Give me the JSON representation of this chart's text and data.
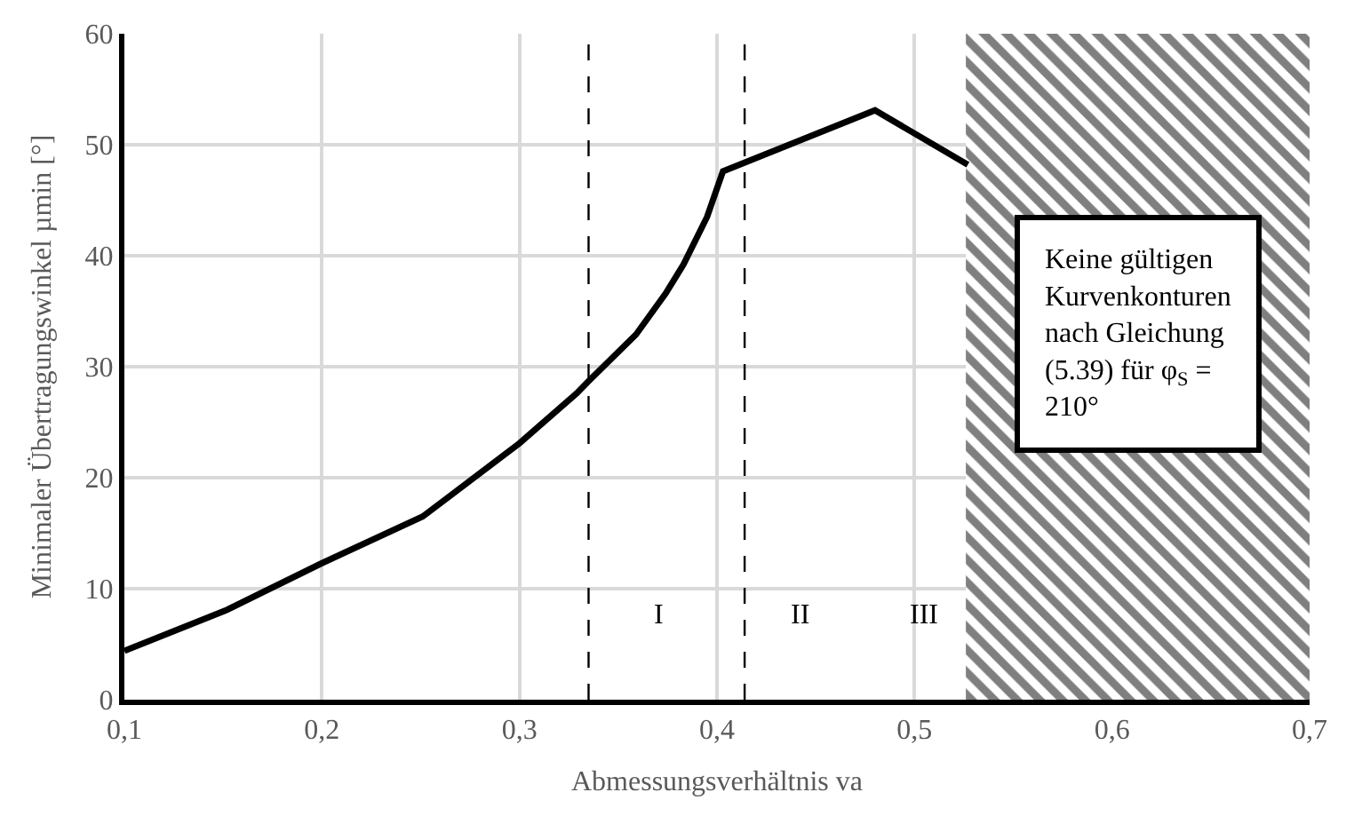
{
  "chart_data": {
    "type": "line",
    "xlabel": "Abmessungsverhältnis va",
    "ylabel": "Minimaler Übertragungswinkel µmin [°]",
    "series": [
      {
        "color": "#000000",
        "x": [
          0.1,
          0.152,
          0.2,
          0.251,
          0.3,
          0.329,
          0.335,
          0.359,
          0.374,
          0.383,
          0.395,
          0.403,
          0.48,
          0.527
        ],
        "values": [
          4.4,
          8.1,
          12.3,
          16.5,
          23.1,
          27.6,
          28.7,
          32.9,
          36.6,
          39.2,
          43.5,
          47.6,
          53.1,
          48.2
        ]
      }
    ],
    "xlim": [
      0.1,
      0.7
    ],
    "xticks": [
      {
        "value": 0.1,
        "label": "0,1"
      },
      {
        "value": 0.2,
        "label": "0,2"
      },
      {
        "value": 0.3,
        "label": "0,3"
      },
      {
        "value": 0.4,
        "label": "0,4"
      },
      {
        "value": 0.5,
        "label": "0,5"
      },
      {
        "value": 0.6,
        "label": "0,6"
      },
      {
        "value": 0.7,
        "label": "0,7"
      }
    ],
    "ylim": [
      0,
      60
    ],
    "yticks": [
      0,
      10,
      20,
      30,
      40,
      50,
      60
    ],
    "grid": true,
    "marker": "none",
    "line_style": "solid",
    "ref_lines": [
      {
        "axis": "x",
        "value": 0.335,
        "line_style": "dashed",
        "color": "#000000"
      },
      {
        "axis": "x",
        "value": 0.414,
        "line_style": "dashed",
        "color": "#000000"
      }
    ],
    "bands": [
      {
        "axis": "x",
        "from": 0.526,
        "to": 0.7,
        "color": "#000000",
        "label": "Keine gültigen Kurvenkonturen nach Gleichung (5.39) für φ$_{S}$ = 210°"
      }
    ],
    "annotations": [
      "I",
      "II",
      "III"
    ]
  }
}
